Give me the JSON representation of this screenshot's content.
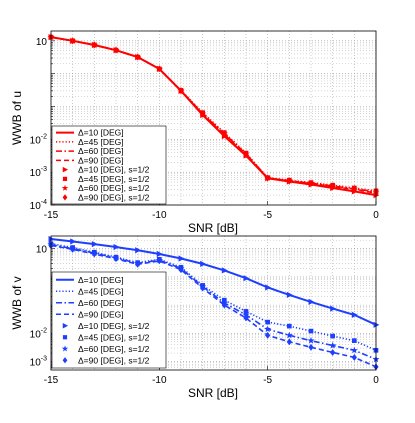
{
  "chart_data": [
    {
      "type": "line",
      "ylabel": "WWB of u",
      "xlabel": "SNR [dB]",
      "xlim": [
        -15,
        0
      ],
      "ylim_log10": [
        -4,
        1.3
      ],
      "yscale": "log",
      "grid": true,
      "legend_position": "bottom-left",
      "color": "#ff0000",
      "xticks": [
        "-15",
        "-10",
        "-5",
        "0"
      ],
      "yticks": [
        {
          "base": "10",
          "exp": "",
          "value": 10
        },
        {
          "base": "10",
          "exp": "-2",
          "value": 0.01
        },
        {
          "base": "10",
          "exp": "-3",
          "value": 0.001
        },
        {
          "base": "10",
          "exp": "-4",
          "value": 0.0001
        }
      ],
      "x": [
        -15,
        -14,
        -13,
        -12,
        -11,
        -10,
        -9,
        -8,
        -7,
        -6,
        -5,
        -4,
        -3,
        -2,
        -1,
        0
      ],
      "series": [
        {
          "name": "Δ=10 [DEG]",
          "style": "solid",
          "values": [
            13,
            10,
            7.5,
            5.2,
            3.2,
            1.4,
            0.3,
            0.055,
            0.0125,
            0.0032,
            0.00065,
            0.00052,
            0.00042,
            0.00033,
            0.00026,
            0.0002
          ]
        },
        {
          "name": "Δ=45 [DEG]",
          "style": "dotted",
          "values": [
            13,
            10,
            7.5,
            5.2,
            3.2,
            1.4,
            0.31,
            0.065,
            0.016,
            0.0038,
            0.00068,
            0.00057,
            0.00048,
            0.0004,
            0.00033,
            0.00027
          ]
        },
        {
          "name": "Δ=60 [DEG]",
          "style": "dashdot",
          "values": [
            13,
            10,
            7.5,
            5.2,
            3.2,
            1.4,
            0.31,
            0.06,
            0.015,
            0.0036,
            0.00067,
            0.00055,
            0.00046,
            0.00038,
            0.00031,
            0.00025
          ]
        },
        {
          "name": "Δ=90 [DEG]",
          "style": "dashed",
          "values": [
            13,
            10,
            7.5,
            5.2,
            3.2,
            1.4,
            0.3,
            0.058,
            0.014,
            0.0034,
            0.00066,
            0.00054,
            0.00045,
            0.00036,
            0.0003,
            0.00023
          ]
        },
        {
          "name": "Δ=10 [DEG], s=1/2",
          "marker": "triangle-right",
          "values": [
            13,
            10,
            7.5,
            5.2,
            3.2,
            1.4,
            0.3,
            0.055,
            0.0125,
            0.0032,
            0.00065,
            0.00052,
            0.00042,
            0.00033,
            0.00026,
            0.0002
          ]
        },
        {
          "name": "Δ=45 [DEG], s=1/2",
          "marker": "square",
          "values": [
            13,
            10,
            7.5,
            5.2,
            3.2,
            1.4,
            0.31,
            0.065,
            0.016,
            0.0038,
            0.00068,
            0.00057,
            0.00048,
            0.0004,
            0.00033,
            0.00027
          ]
        },
        {
          "name": "Δ=60 [DEG], s=1/2",
          "marker": "star",
          "values": [
            13,
            10,
            7.5,
            5.2,
            3.2,
            1.4,
            0.31,
            0.06,
            0.015,
            0.0036,
            0.00067,
            0.00055,
            0.00046,
            0.00038,
            0.00031,
            0.00025
          ]
        },
        {
          "name": "Δ=90 [DEG], s=1/2",
          "marker": "diamond",
          "values": [
            13,
            10,
            7.5,
            5.2,
            3.2,
            1.4,
            0.3,
            0.058,
            0.014,
            0.0034,
            0.00066,
            0.00054,
            0.00045,
            0.00036,
            0.0003,
            0.00023
          ]
        }
      ]
    },
    {
      "type": "line",
      "ylabel": "WWB of v",
      "xlabel": "SNR [dB]",
      "xlim": [
        -15,
        0
      ],
      "ylim_log10": [
        -3.3,
        1.45
      ],
      "yscale": "log",
      "grid": true,
      "legend_position": "bottom-left",
      "color": "#1f3fff",
      "xticks": [
        "-15",
        "-10",
        "-5",
        "0"
      ],
      "yticks": [
        {
          "base": "10",
          "exp": "",
          "value": 10
        },
        {
          "base": "10",
          "exp": "-2",
          "value": 0.01
        },
        {
          "base": "10",
          "exp": "-3",
          "value": 0.001
        }
      ],
      "x": [
        -15,
        -14,
        -13,
        -12,
        -11,
        -10,
        -9,
        -8,
        -7,
        -6,
        -5,
        -4,
        -3,
        -2,
        -1,
        0
      ],
      "series": [
        {
          "name": "Δ=10 [DEG]",
          "style": "solid",
          "values": [
            22,
            18,
            14.5,
            11.5,
            8.8,
            6.5,
            4.5,
            2.9,
            1.7,
            0.9,
            0.42,
            0.23,
            0.13,
            0.075,
            0.045,
            0.02
          ]
        },
        {
          "name": "Δ=45 [DEG]",
          "style": "dotted",
          "values": [
            15,
            11,
            7.5,
            5,
            3.2,
            4.2,
            2.2,
            0.5,
            0.15,
            0.06,
            0.025,
            0.018,
            0.012,
            0.008,
            0.0055,
            0.0025
          ]
        },
        {
          "name": "Δ=60 [DEG]",
          "style": "dashdot",
          "values": [
            14,
            10,
            7,
            4.7,
            3,
            3.9,
            2,
            0.45,
            0.12,
            0.045,
            0.014,
            0.0085,
            0.0055,
            0.0037,
            0.0025,
            0.0012
          ]
        },
        {
          "name": "Δ=90 [DEG]",
          "style": "dashed",
          "values": [
            13,
            9.5,
            6.5,
            4.4,
            2.8,
            3.7,
            1.8,
            0.4,
            0.1,
            0.035,
            0.0085,
            0.005,
            0.0032,
            0.0021,
            0.0014,
            0.00065
          ]
        },
        {
          "name": "Δ=10 [DEG], s=1/2",
          "marker": "triangle-right",
          "values": [
            22,
            18,
            14.5,
            11.5,
            8.8,
            6.5,
            4.5,
            2.9,
            1.7,
            0.9,
            0.42,
            0.23,
            0.13,
            0.075,
            0.045,
            0.02
          ]
        },
        {
          "name": "Δ=45 [DEG], s=1/2",
          "marker": "square",
          "values": [
            15,
            11,
            7.5,
            5,
            3.2,
            4.2,
            2.2,
            0.5,
            0.15,
            0.06,
            0.025,
            0.018,
            0.012,
            0.008,
            0.0055,
            0.0025
          ]
        },
        {
          "name": "Δ=60 [DEG], s=1/2",
          "marker": "star",
          "values": [
            14,
            10,
            7,
            4.7,
            3,
            3.9,
            2,
            0.45,
            0.12,
            0.045,
            0.014,
            0.0085,
            0.0055,
            0.0037,
            0.0025,
            0.0012
          ]
        },
        {
          "name": "Δ=90 [DEG], s=1/2",
          "marker": "diamond",
          "values": [
            13,
            9.5,
            6.5,
            4.4,
            2.8,
            3.7,
            1.8,
            0.4,
            0.1,
            0.035,
            0.0085,
            0.005,
            0.0032,
            0.0021,
            0.0014,
            0.00065
          ]
        }
      ]
    }
  ]
}
